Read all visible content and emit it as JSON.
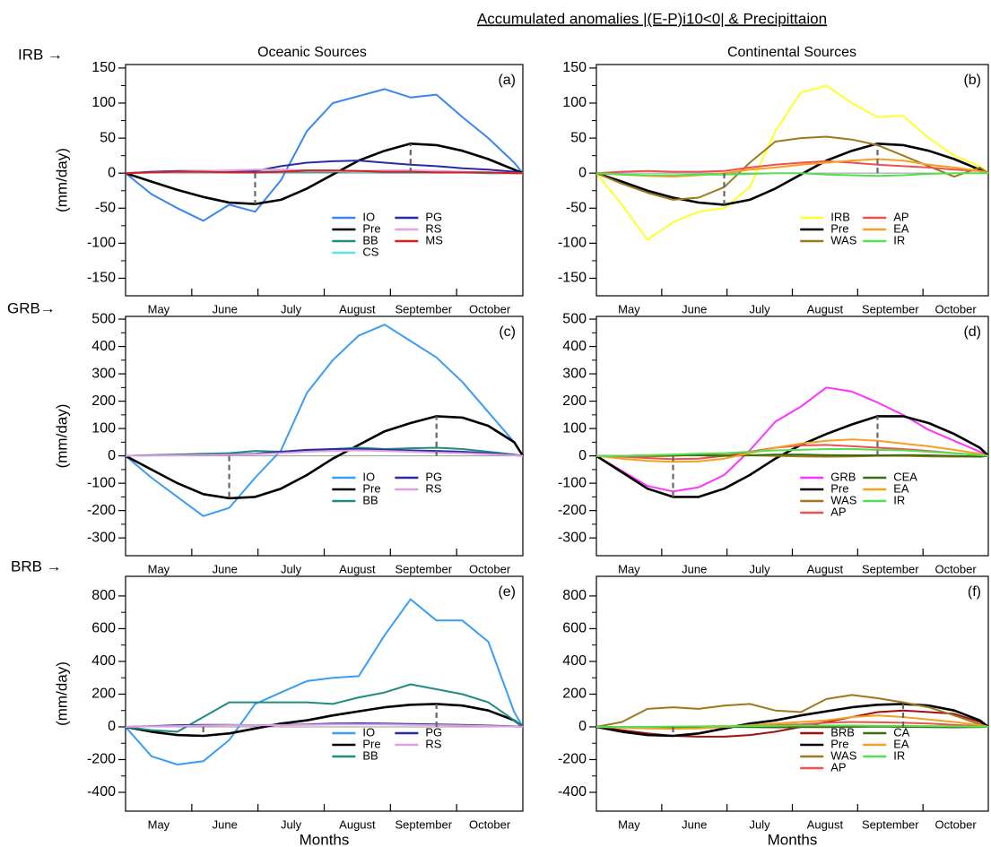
{
  "title": "Accumulated anomalies |(E-P)i10<0|  & Precipittaion",
  "column_titles": [
    "Oceanic Sources",
    "Continental Sources"
  ],
  "row_labels": [
    "IRB →",
    "GRB→",
    "BRB →"
  ],
  "chart_data": [
    {
      "type": "line",
      "panel_label": "(a)",
      "ylabel": "(mm/day)",
      "months": [
        "May",
        "June",
        "July",
        "August",
        "September",
        "October"
      ],
      "x": [
        0,
        12,
        24,
        36,
        48,
        60,
        72,
        84,
        96,
        108,
        120,
        132,
        144,
        156,
        168,
        180,
        184
      ],
      "xlim": [
        0,
        184
      ],
      "ylim": [
        -175,
        155
      ],
      "yticks": [
        -150,
        -100,
        -50,
        0,
        50,
        100,
        150
      ],
      "zero_line": true,
      "legend_loc": "lower center",
      "series": [
        {
          "name": "IO",
          "color": "#3a86ef",
          "values": [
            0,
            -30,
            -50,
            -68,
            -45,
            -55,
            -10,
            60,
            100,
            110,
            120,
            108,
            112,
            80,
            50,
            15,
            0
          ]
        },
        {
          "name": "Pre",
          "color": "#000000",
          "dashed_extremes": true,
          "values": [
            0,
            -12,
            -24,
            -34,
            -42,
            -44,
            -38,
            -22,
            -2,
            18,
            32,
            42,
            40,
            32,
            20,
            5,
            0
          ]
        },
        {
          "name": "BB",
          "color": "#1f8c82",
          "values": [
            0,
            1,
            2,
            2,
            2,
            1,
            2,
            2,
            2,
            2,
            1,
            1,
            1,
            1,
            0,
            0,
            0
          ]
        },
        {
          "name": "CS",
          "color": "#5fe6e0",
          "values": [
            0,
            1,
            2,
            3,
            3,
            4,
            4,
            3,
            3,
            2,
            2,
            2,
            2,
            1,
            1,
            0,
            0
          ]
        },
        {
          "name": "PG",
          "color": "#2a2aa5",
          "values": [
            0,
            2,
            3,
            3,
            3,
            3,
            10,
            15,
            17,
            18,
            15,
            12,
            10,
            7,
            5,
            2,
            0
          ]
        },
        {
          "name": "RS",
          "color": "#e0a0e0",
          "values": [
            0,
            1,
            2,
            3,
            4,
            5,
            5,
            4,
            3,
            3,
            4,
            4,
            3,
            2,
            1,
            0,
            0
          ]
        },
        {
          "name": "MS",
          "color": "#d62020",
          "values": [
            0,
            1,
            2,
            2,
            1,
            1,
            2,
            4,
            4,
            3,
            2,
            2,
            1,
            1,
            1,
            0,
            0
          ]
        }
      ]
    },
    {
      "type": "line",
      "panel_label": "(b)",
      "months": [
        "May",
        "June",
        "July",
        "August",
        "September",
        "October"
      ],
      "x": [
        0,
        12,
        24,
        36,
        48,
        60,
        72,
        84,
        96,
        108,
        120,
        132,
        144,
        156,
        168,
        180,
        184
      ],
      "xlim": [
        0,
        184
      ],
      "ylim": [
        -175,
        155
      ],
      "yticks": [
        -150,
        -100,
        -50,
        0,
        50,
        100,
        150
      ],
      "zero_line": true,
      "legend_loc": "lower center",
      "series": [
        {
          "name": "IRB",
          "color": "#ffff2e",
          "values": [
            0,
            -45,
            -95,
            -70,
            -55,
            -50,
            -20,
            60,
            115,
            125,
            100,
            80,
            82,
            50,
            25,
            10,
            0
          ]
        },
        {
          "name": "Pre",
          "color": "#000000",
          "dashed_extremes": true,
          "values": [
            0,
            -12,
            -25,
            -35,
            -42,
            -45,
            -38,
            -22,
            -2,
            18,
            32,
            42,
            40,
            32,
            20,
            5,
            0
          ]
        },
        {
          "name": "WAS",
          "color": "#9a7a1c",
          "values": [
            0,
            -15,
            -28,
            -38,
            -35,
            -20,
            15,
            45,
            50,
            52,
            48,
            40,
            25,
            10,
            -5,
            8,
            0
          ]
        },
        {
          "name": "AP",
          "color": "#f05050",
          "values": [
            0,
            2,
            3,
            2,
            2,
            3,
            8,
            12,
            15,
            17,
            15,
            12,
            10,
            8,
            5,
            3,
            0
          ]
        },
        {
          "name": "EA",
          "color": "#f5a020",
          "values": [
            0,
            -2,
            -4,
            -5,
            -3,
            0,
            5,
            8,
            12,
            15,
            18,
            20,
            18,
            12,
            8,
            3,
            0
          ]
        },
        {
          "name": "IR",
          "color": "#50e050",
          "values": [
            0,
            -2,
            -3,
            -3,
            -2,
            -2,
            -1,
            0,
            0,
            -2,
            -3,
            -4,
            -3,
            -1,
            0,
            0,
            0
          ]
        }
      ]
    },
    {
      "type": "line",
      "panel_label": "(c)",
      "ylabel": "(mm/day)",
      "months": [
        "May",
        "June",
        "July",
        "August",
        "September",
        "October"
      ],
      "x": [
        0,
        12,
        24,
        36,
        48,
        60,
        72,
        84,
        96,
        108,
        120,
        132,
        144,
        156,
        168,
        180,
        184
      ],
      "xlim": [
        0,
        184
      ],
      "ylim": [
        -365,
        510
      ],
      "yticks": [
        -300,
        -200,
        -100,
        0,
        100,
        200,
        300,
        400,
        500
      ],
      "zero_line": true,
      "legend_loc": "lower center",
      "series": [
        {
          "name": "IO",
          "color": "#3a9cf5",
          "values": [
            0,
            -80,
            -150,
            -220,
            -190,
            -80,
            20,
            230,
            350,
            440,
            480,
            420,
            360,
            270,
            160,
            50,
            0
          ]
        },
        {
          "name": "Pre",
          "color": "#000000",
          "dashed_extremes": true,
          "values": [
            0,
            -50,
            -100,
            -140,
            -155,
            -150,
            -120,
            -70,
            -10,
            40,
            90,
            120,
            145,
            140,
            110,
            50,
            0
          ]
        },
        {
          "name": "BB",
          "color": "#1f8c82",
          "values": [
            0,
            3,
            5,
            8,
            10,
            18,
            15,
            18,
            25,
            30,
            25,
            28,
            30,
            25,
            15,
            5,
            0
          ]
        },
        {
          "name": "PG",
          "color": "#2a2aa5",
          "values": [
            0,
            2,
            3,
            3,
            5,
            8,
            15,
            22,
            25,
            25,
            22,
            20,
            18,
            15,
            10,
            3,
            0
          ]
        },
        {
          "name": "RS",
          "color": "#e0a0e0",
          "values": [
            0,
            1,
            2,
            3,
            4,
            6,
            10,
            15,
            18,
            20,
            18,
            15,
            12,
            10,
            6,
            2,
            0
          ]
        }
      ]
    },
    {
      "type": "line",
      "panel_label": "(d)",
      "months": [
        "May",
        "June",
        "July",
        "August",
        "September",
        "October"
      ],
      "x": [
        0,
        12,
        24,
        36,
        48,
        60,
        72,
        84,
        96,
        108,
        120,
        132,
        144,
        156,
        168,
        180,
        184
      ],
      "xlim": [
        0,
        184
      ],
      "ylim": [
        -365,
        510
      ],
      "yticks": [
        -300,
        -200,
        -100,
        0,
        100,
        200,
        300,
        400,
        500
      ],
      "zero_line": true,
      "legend_loc": "lower center",
      "series": [
        {
          "name": "GRB",
          "color": "#ff33ff",
          "values": [
            0,
            -55,
            -110,
            -130,
            -115,
            -70,
            20,
            125,
            180,
            250,
            235,
            195,
            150,
            95,
            55,
            15,
            0
          ]
        },
        {
          "name": "Pre",
          "color": "#000000",
          "dashed_extremes": true,
          "values": [
            0,
            -60,
            -120,
            -150,
            -150,
            -120,
            -70,
            -10,
            40,
            80,
            115,
            145,
            145,
            120,
            80,
            30,
            0
          ]
        },
        {
          "name": "WAS",
          "color": "#9a7a1c",
          "values": [
            0,
            -2,
            -2,
            0,
            5,
            3,
            2,
            0,
            -2,
            -3,
            -2,
            0,
            0,
            -2,
            -3,
            -3,
            0
          ]
        },
        {
          "name": "AP",
          "color": "#f05050",
          "values": [
            0,
            -3,
            -8,
            -12,
            -10,
            0,
            15,
            30,
            38,
            40,
            35,
            30,
            25,
            18,
            10,
            3,
            0
          ]
        },
        {
          "name": "CEA",
          "color": "#3a6e10",
          "values": [
            0,
            0,
            2,
            3,
            2,
            0,
            2,
            5,
            5,
            3,
            2,
            2,
            3,
            2,
            0,
            -3,
            0
          ]
        },
        {
          "name": "EA",
          "color": "#f5a020",
          "values": [
            0,
            -10,
            -18,
            -22,
            -20,
            -10,
            10,
            30,
            45,
            55,
            60,
            55,
            45,
            35,
            22,
            8,
            0
          ]
        },
        {
          "name": "IR",
          "color": "#50e050",
          "values": [
            0,
            0,
            2,
            5,
            8,
            10,
            15,
            20,
            22,
            25,
            25,
            22,
            20,
            15,
            10,
            3,
            0
          ]
        }
      ]
    },
    {
      "type": "line",
      "panel_label": "(e)",
      "ylabel": "(mm/day)",
      "xlabel": "Months",
      "months": [
        "May",
        "June",
        "July",
        "August",
        "September",
        "October"
      ],
      "x": [
        0,
        12,
        24,
        36,
        48,
        60,
        72,
        84,
        96,
        108,
        120,
        132,
        144,
        156,
        168,
        180,
        184
      ],
      "xlim": [
        0,
        184
      ],
      "ylim": [
        -515,
        920
      ],
      "yticks": [
        -400,
        -200,
        0,
        200,
        400,
        600,
        800
      ],
      "zero_line": true,
      "legend_loc": "lower center",
      "series": [
        {
          "name": "IO",
          "color": "#3a9cf5",
          "values": [
            0,
            -180,
            -230,
            -210,
            -80,
            140,
            210,
            280,
            300,
            310,
            560,
            780,
            650,
            650,
            520,
            90,
            0
          ]
        },
        {
          "name": "Pre",
          "color": "#000000",
          "dashed_extremes": true,
          "values": [
            0,
            -30,
            -50,
            -55,
            -40,
            -10,
            20,
            40,
            70,
            95,
            120,
            135,
            140,
            130,
            100,
            40,
            0
          ]
        },
        {
          "name": "BB",
          "color": "#1f8c82",
          "values": [
            0,
            -20,
            -30,
            60,
            150,
            150,
            150,
            150,
            140,
            180,
            210,
            260,
            230,
            200,
            150,
            40,
            0
          ]
        },
        {
          "name": "PG",
          "color": "#2a2aa5",
          "values": [
            0,
            5,
            10,
            12,
            12,
            10,
            12,
            15,
            20,
            22,
            20,
            18,
            15,
            12,
            8,
            3,
            0
          ]
        },
        {
          "name": "RS",
          "color": "#e0a0e0",
          "values": [
            0,
            3,
            5,
            8,
            10,
            10,
            10,
            12,
            15,
            15,
            15,
            12,
            10,
            8,
            5,
            2,
            0
          ]
        }
      ]
    },
    {
      "type": "line",
      "panel_label": "(f)",
      "xlabel": "Months",
      "months": [
        "May",
        "June",
        "July",
        "August",
        "September",
        "October"
      ],
      "x": [
        0,
        12,
        24,
        36,
        48,
        60,
        72,
        84,
        96,
        108,
        120,
        132,
        144,
        156,
        168,
        180,
        184
      ],
      "xlim": [
        0,
        184
      ],
      "ylim": [
        -515,
        920
      ],
      "yticks": [
        -400,
        -200,
        0,
        200,
        400,
        600,
        800
      ],
      "zero_line": true,
      "legend_loc": "lower center",
      "series": [
        {
          "name": "BRB",
          "color": "#a01010",
          "values": [
            0,
            -20,
            -40,
            -55,
            -60,
            -60,
            -50,
            -30,
            0,
            30,
            60,
            90,
            100,
            90,
            80,
            30,
            0
          ]
        },
        {
          "name": "Pre",
          "color": "#000000",
          "dashed_extremes": true,
          "values": [
            0,
            -30,
            -50,
            -55,
            -40,
            -10,
            20,
            40,
            70,
            95,
            120,
            135,
            140,
            130,
            100,
            40,
            0
          ]
        },
        {
          "name": "WAS",
          "color": "#9a7a1c",
          "values": [
            0,
            30,
            110,
            120,
            110,
            130,
            140,
            100,
            90,
            170,
            195,
            175,
            150,
            120,
            70,
            15,
            0
          ]
        },
        {
          "name": "AP",
          "color": "#f05050",
          "values": [
            0,
            -2,
            -5,
            -5,
            -5,
            0,
            5,
            10,
            15,
            25,
            30,
            28,
            25,
            20,
            12,
            4,
            0
          ]
        },
        {
          "name": "CA",
          "color": "#3a6e10",
          "values": [
            0,
            -2,
            -3,
            -3,
            -2,
            0,
            -2,
            -3,
            -2,
            -2,
            0,
            2,
            0,
            -2,
            -3,
            -2,
            0
          ]
        },
        {
          "name": "EA",
          "color": "#f5a020",
          "values": [
            0,
            -5,
            -10,
            -12,
            -10,
            0,
            10,
            20,
            30,
            40,
            60,
            70,
            60,
            45,
            30,
            10,
            0
          ]
        },
        {
          "name": "IR",
          "color": "#50e050",
          "values": [
            0,
            0,
            0,
            2,
            3,
            5,
            5,
            6,
            8,
            8,
            8,
            7,
            6,
            5,
            3,
            1,
            0
          ]
        }
      ]
    }
  ]
}
